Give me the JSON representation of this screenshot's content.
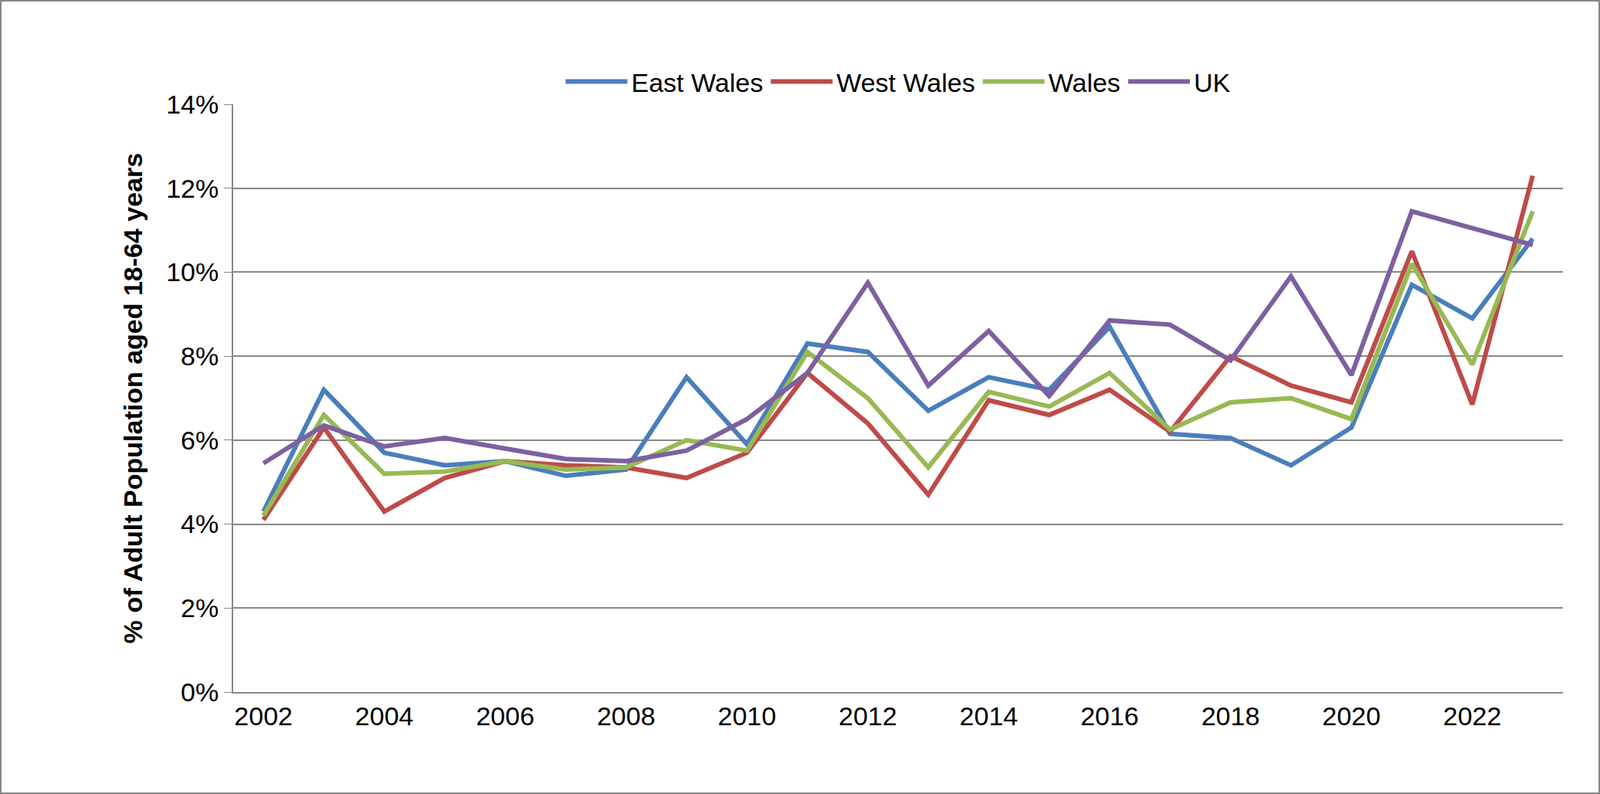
{
  "chart_data": {
    "type": "line",
    "y_label": "% of Adult Population aged 18-64 years",
    "categories": [
      "2002",
      null,
      "2004",
      null,
      "2006",
      null,
      "2008",
      null,
      "2010",
      null,
      "2012",
      null,
      "2014",
      null,
      "2016",
      null,
      "2018",
      null,
      "2020",
      null,
      "2022",
      null
    ],
    "series": [
      {
        "name": "East Wales",
        "color": "#4a7ebb",
        "values": [
          4.3,
          7.2,
          5.7,
          5.4,
          5.5,
          5.15,
          5.3,
          7.5,
          5.9,
          8.3,
          8.1,
          6.7,
          7.5,
          7.2,
          8.7,
          6.15,
          6.05,
          5.4,
          6.3,
          9.7,
          8.9,
          10.8
        ]
      },
      {
        "name": "West Wales",
        "color": "#be4b48",
        "values": [
          4.1,
          6.3,
          4.3,
          5.1,
          5.5,
          5.4,
          5.35,
          5.1,
          5.7,
          7.6,
          6.4,
          4.7,
          6.95,
          6.6,
          7.2,
          6.2,
          8.0,
          7.3,
          6.9,
          10.5,
          6.85,
          12.3
        ]
      },
      {
        "name": "Wales",
        "color": "#98b954",
        "values": [
          4.2,
          6.6,
          5.2,
          5.25,
          5.5,
          5.3,
          5.35,
          6.0,
          5.75,
          8.1,
          7.0,
          5.35,
          7.15,
          6.8,
          7.6,
          6.25,
          6.9,
          7.0,
          6.5,
          10.2,
          7.8,
          11.45
        ]
      },
      {
        "name": "UK",
        "color": "#7d60a0",
        "values": [
          5.45,
          6.35,
          5.85,
          6.05,
          5.8,
          5.55,
          5.5,
          5.75,
          6.5,
          7.6,
          9.75,
          7.3,
          8.6,
          7.05,
          8.85,
          8.75,
          7.9,
          9.9,
          7.55,
          11.45,
          11.05,
          10.65
        ]
      }
    ],
    "ylim": [
      0,
      14
    ],
    "yticks": [
      {
        "value": 0,
        "label": "0%"
      },
      {
        "value": 2,
        "label": "2%"
      },
      {
        "value": 4,
        "label": "4%"
      },
      {
        "value": 6,
        "label": "6%"
      },
      {
        "value": 8,
        "label": "8%"
      },
      {
        "value": 10,
        "label": "10%"
      },
      {
        "value": 12,
        "label": "12%"
      },
      {
        "value": 14,
        "label": "14%"
      }
    ],
    "grid": true,
    "legend": "top"
  }
}
